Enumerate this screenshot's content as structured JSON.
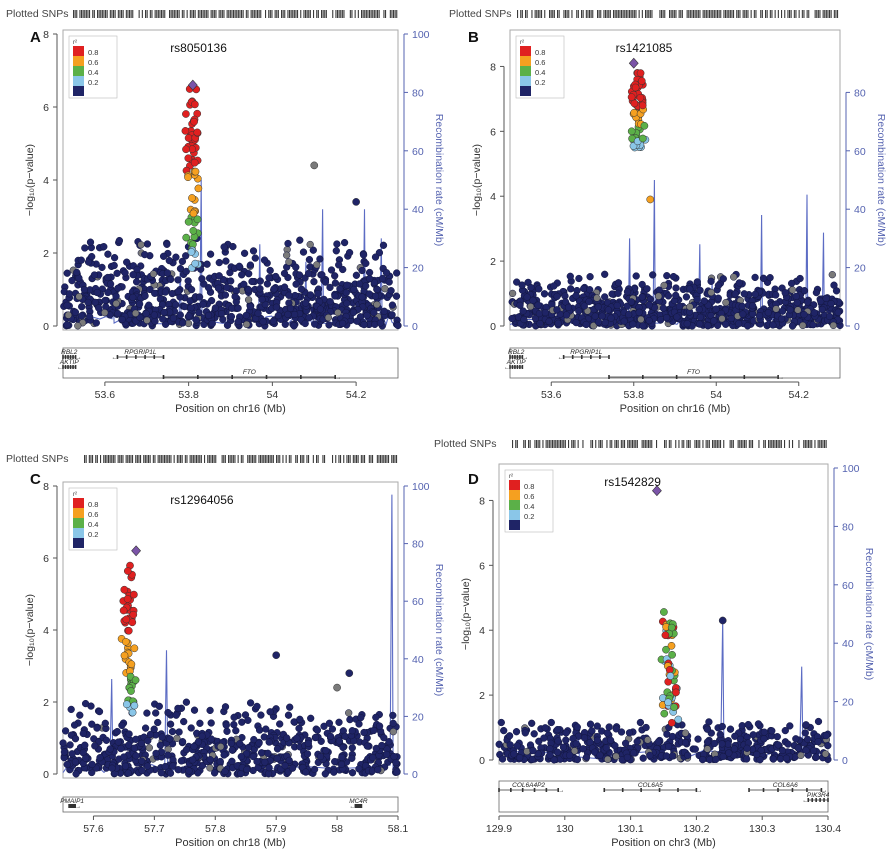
{
  "figure": {
    "colors": {
      "snp_default": "#1f2466",
      "snp_outline": "#12163f",
      "recomb_line": "#5c6cc4",
      "axis": "#333333",
      "axis_right": "#5563b0",
      "frame": "#aaaaaa",
      "track": "#444444",
      "gray_snp": "#7a7a7a",
      "lead_snp": "#7b54a8"
    },
    "legend_r2_bins": [
      {
        "label": "0.8",
        "color": "#e02020"
      },
      {
        "label": "0.6",
        "color": "#f5a020"
      },
      {
        "label": "0.4",
        "color": "#5bb048"
      },
      {
        "label": "0.2",
        "color": "#8ac6e8"
      },
      {
        "label": "",
        "color": "#1f2466"
      }
    ],
    "legend_title": "r²",
    "plotted_snps_label": "Plotted SNPs",
    "y_left_label": "−log₁₀(p−value)",
    "y_right_label": "Recombination rate (cM/Mb)"
  },
  "chart_data": [
    {
      "type": "scatter",
      "panel_letter": "A",
      "lead_snp": "rs8050136",
      "xlabel": "Position on chr16 (Mb)",
      "xlim": [
        53.5,
        54.3
      ],
      "x_ticks": [
        53.6,
        53.8,
        54.0,
        54.2
      ],
      "x_tick_labels": [
        "53.6",
        "53.8",
        "54",
        "54.2"
      ],
      "ylim": [
        0,
        8
      ],
      "y_ticks": [
        0,
        2,
        4,
        6,
        8
      ],
      "y_tick_labels": [
        "0",
        "2",
        "4",
        "6",
        "8"
      ],
      "y2lim": [
        0,
        100
      ],
      "y2_ticks": [
        0,
        20,
        40,
        60,
        80,
        100
      ],
      "y2_tick_labels": [
        "0",
        "20",
        "40",
        "60",
        "80",
        "100"
      ],
      "lead_point": {
        "x": 53.81,
        "y": 6.6
      },
      "signal_peak": {
        "x": 53.81,
        "top": 6.5,
        "bottom": 1.5,
        "n": 70
      },
      "background": {
        "n": 800,
        "max": 2.4
      },
      "outliers": [
        {
          "x": 54.1,
          "y": 4.4,
          "r2": "gray"
        },
        {
          "x": 54.2,
          "y": 3.4,
          "r2": "none"
        }
      ],
      "recomb_spikes": [
        {
          "x": 53.78,
          "cmmb": 22
        },
        {
          "x": 53.83,
          "cmmb": 50
        },
        {
          "x": 53.97,
          "cmmb": 28
        },
        {
          "x": 54.08,
          "cmmb": 22
        },
        {
          "x": 54.12,
          "cmmb": 40
        },
        {
          "x": 54.22,
          "cmmb": 40
        },
        {
          "x": 54.26,
          "cmmb": 30
        },
        {
          "x": 53.62,
          "cmmb": 10
        }
      ],
      "genes": [
        {
          "name": "RBL2",
          "start": 53.5,
          "end": 53.53,
          "row": 0,
          "dir": "right"
        },
        {
          "name": "RPGRIP1L",
          "start": 53.63,
          "end": 53.74,
          "row": 0,
          "dir": "left"
        },
        {
          "name": "AKTIP",
          "start": 53.5,
          "end": 53.53,
          "row": 1,
          "dir": "left"
        },
        {
          "name": "FTO",
          "start": 53.74,
          "end": 54.15,
          "row": 2,
          "dir": "right"
        }
      ]
    },
    {
      "type": "scatter",
      "panel_letter": "B",
      "lead_snp": "rs1421085",
      "xlabel": "Position on chr16 (Mb)",
      "xlim": [
        53.5,
        54.3
      ],
      "x_ticks": [
        53.6,
        53.8,
        54.0,
        54.2
      ],
      "x_tick_labels": [
        "53.6",
        "53.8",
        "54",
        "54.2"
      ],
      "ylim": [
        0,
        9
      ],
      "y_ticks": [
        0,
        2,
        4,
        6,
        8
      ],
      "y_tick_labels": [
        "0",
        "2",
        "4",
        "6",
        "8"
      ],
      "y2lim": [
        0,
        100
      ],
      "y2_ticks": [
        0,
        20,
        40,
        60,
        80
      ],
      "y2_tick_labels": [
        "0",
        "20",
        "40",
        "60",
        "80"
      ],
      "lead_point": {
        "x": 53.8,
        "y": 8.1
      },
      "signal_peak": {
        "x": 53.81,
        "top": 7.8,
        "bottom": 5.5,
        "n": 70
      },
      "background": {
        "n": 800,
        "max": 1.6
      },
      "outliers": [
        {
          "x": 53.84,
          "y": 3.9,
          "r2": "0.6"
        }
      ],
      "recomb_spikes": [
        {
          "x": 53.79,
          "cmmb": 30
        },
        {
          "x": 53.85,
          "cmmb": 50
        },
        {
          "x": 53.96,
          "cmmb": 28
        },
        {
          "x": 53.99,
          "cmmb": 15
        },
        {
          "x": 54.11,
          "cmmb": 38
        },
        {
          "x": 54.22,
          "cmmb": 45
        },
        {
          "x": 54.26,
          "cmmb": 32
        }
      ],
      "genes": [
        {
          "name": "RBL2",
          "start": 53.5,
          "end": 53.53,
          "row": 0,
          "dir": "right"
        },
        {
          "name": "RPGRIP1L",
          "start": 53.63,
          "end": 53.74,
          "row": 0,
          "dir": "left"
        },
        {
          "name": "AKTIP",
          "start": 53.5,
          "end": 53.53,
          "row": 1,
          "dir": "left"
        },
        {
          "name": "FTO",
          "start": 53.74,
          "end": 54.15,
          "row": 2,
          "dir": "right"
        }
      ]
    },
    {
      "type": "scatter",
      "panel_letter": "C",
      "lead_snp": "rs12964056",
      "xlabel": "Position on chr18 (Mb)",
      "xlim": [
        57.55,
        58.1
      ],
      "x_ticks": [
        57.6,
        57.7,
        57.8,
        57.9,
        58.0,
        58.1
      ],
      "x_tick_labels": [
        "57.6",
        "57.7",
        "57.8",
        "57.9",
        "58",
        "58.1"
      ],
      "ylim": [
        0,
        8
      ],
      "y_ticks": [
        0,
        2,
        4,
        6,
        8
      ],
      "y_tick_labels": [
        "0",
        "2",
        "4",
        "6",
        "8"
      ],
      "y2lim": [
        0,
        100
      ],
      "y2_ticks": [
        0,
        20,
        40,
        60,
        80,
        100
      ],
      "y2_tick_labels": [
        "0",
        "20",
        "40",
        "60",
        "80",
        "100"
      ],
      "lead_point": {
        "x": 57.67,
        "y": 6.2
      },
      "signal_peak": {
        "x": 57.66,
        "top": 5.8,
        "bottom": 1.5,
        "n": 60
      },
      "background": {
        "n": 650,
        "max": 2.0
      },
      "outliers": [
        {
          "x": 57.9,
          "y": 3.3,
          "r2": "none"
        },
        {
          "x": 58.0,
          "y": 2.4,
          "r2": "gray"
        },
        {
          "x": 58.02,
          "y": 2.8,
          "r2": "none"
        }
      ],
      "recomb_spikes": [
        {
          "x": 57.63,
          "cmmb": 33
        },
        {
          "x": 57.72,
          "cmmb": 43
        },
        {
          "x": 58.09,
          "cmmb": 97
        }
      ],
      "genes": [
        {
          "name": "PMAIP1",
          "start": 57.56,
          "end": 57.57,
          "row": 0,
          "dir": "right"
        },
        {
          "name": "MC4R",
          "start": 58.03,
          "end": 58.04,
          "row": 0,
          "dir": "left"
        }
      ]
    },
    {
      "type": "scatter",
      "panel_letter": "D",
      "lead_snp": "rs1542829",
      "xlabel": "Position on chr3 (Mb)",
      "xlim": [
        129.9,
        130.4
      ],
      "x_ticks": [
        129.9,
        130.0,
        130.1,
        130.2,
        130.3,
        130.4
      ],
      "x_tick_labels": [
        "129.9",
        "130",
        "130.1",
        "130.2",
        "130.3",
        "130.4"
      ],
      "ylim": [
        0,
        9
      ],
      "y_ticks": [
        0,
        2,
        4,
        6,
        8
      ],
      "y_tick_labels": [
        "0",
        "2",
        "4",
        "6",
        "8"
      ],
      "y2lim": [
        0,
        100
      ],
      "y2_ticks": [
        0,
        20,
        40,
        60,
        80,
        100
      ],
      "y2_tick_labels": [
        "0",
        "20",
        "40",
        "60",
        "80",
        "100"
      ],
      "lead_point": {
        "x": 130.14,
        "y": 8.3
      },
      "signal_peak": {
        "x": 130.16,
        "top": 4.6,
        "bottom": 1.0,
        "n": 60
      },
      "background": {
        "n": 500,
        "max": 1.2
      },
      "outliers": [
        {
          "x": 130.24,
          "y": 4.3,
          "r2": "none"
        }
      ],
      "recomb_spikes": [
        {
          "x": 130.02,
          "cmmb": 12
        },
        {
          "x": 130.24,
          "cmmb": 48
        },
        {
          "x": 130.36,
          "cmmb": 32
        }
      ],
      "genes": [
        {
          "name": "COL6A4P2",
          "start": 129.9,
          "end": 129.99,
          "row": 0,
          "dir": "right"
        },
        {
          "name": "COL6A5",
          "start": 130.06,
          "end": 130.2,
          "row": 0,
          "dir": "right"
        },
        {
          "name": "COL6A6",
          "start": 130.28,
          "end": 130.39,
          "row": 0,
          "dir": "right"
        },
        {
          "name": "PIK3R4",
          "start": 130.37,
          "end": 130.4,
          "row": 1,
          "dir": "left"
        }
      ]
    }
  ]
}
